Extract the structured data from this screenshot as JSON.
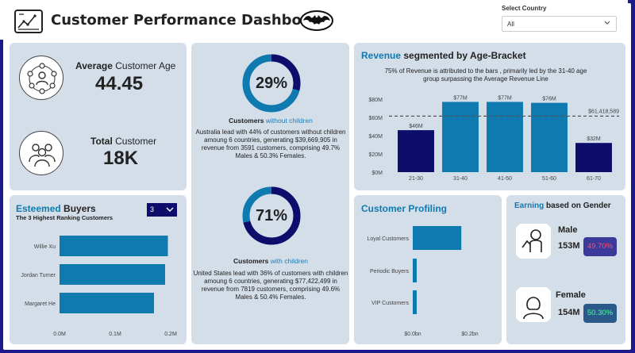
{
  "header": {
    "title": "Customer Performance Dashboard",
    "country_label": "Select Country",
    "country_value": "All"
  },
  "kpis": {
    "age_label_bold": "Average",
    "age_label_rest": " Customer Age",
    "age_value": "44.45",
    "total_label_bold": "Total",
    "total_label_rest": " Customer",
    "total_value": "18K"
  },
  "without_children": {
    "pct": "29%",
    "pct_value": 0.29,
    "title_bold": "Customers",
    "title_rest": " without children",
    "desc": "Australia lead with 44% of customers without children amoung 6 countries, generating $39,669,905 in revenue from 3591 customers, comprising 49.7% Males & 50.3% Females."
  },
  "with_children": {
    "pct": "71%",
    "pct_value": 0.71,
    "title_bold": "Customers",
    "title_rest": " with children",
    "desc": "United States lead with 36% of customers with children amoung 6 countries, generating $77,422,499 in revenue from 7819 customers, comprising 49.6% Males & 50.4% Females."
  },
  "esteemed": {
    "title_hl": "Esteemed",
    "title_rest": " Buyers",
    "subtitle": "The 3 Highest Ranking Customers",
    "dropdown_value": "3"
  },
  "revenue": {
    "title_hl": "Revenue",
    "title_rest": " segmented by Age-Bracket",
    "caption": "75% of Revenue is attributed to the bars , primarily led by the 31-40 age group surpassing the Average Revenue Line"
  },
  "profiling": {
    "title": "Customer Profiling"
  },
  "gender": {
    "title_hl": "Earning",
    "title_rest": " based on Gender",
    "male_label": "Male",
    "male_value": "153M",
    "male_pct": "49.70%",
    "female_label": "Female",
    "female_value": "154M",
    "female_pct": "50.30%"
  },
  "colors": {
    "navy": "#0d0d6b",
    "teal": "#0e7ab0",
    "panel": "#d4dee9",
    "male_pct": "#ff4d6d",
    "female_pct": "#4dff9a"
  },
  "chart_data": [
    {
      "type": "bar",
      "title": "Revenue segmented by Age-Bracket",
      "categories": [
        "21-30",
        "31-40",
        "41-50",
        "51-60",
        "61-70"
      ],
      "values": [
        46,
        77,
        77,
        76,
        32
      ],
      "value_labels": [
        "$46M",
        "$77M",
        "$77M",
        "$76M",
        "$32M"
      ],
      "yticks": [
        "$0M",
        "$20M",
        "$40M",
        "$60M",
        "$80M"
      ],
      "ylim": [
        0,
        80
      ],
      "average_line": 61.418589,
      "average_label": "$61,418,589"
    },
    {
      "type": "bar",
      "orientation": "horizontal",
      "title": "Esteemed Buyers",
      "categories": [
        "Willie Xu",
        "Jordan Turner",
        "Margaret He"
      ],
      "values": [
        0.195,
        0.19,
        0.17
      ],
      "xticks": [
        "0.0M",
        "0.1M",
        "0.2M"
      ],
      "xlim": [
        0,
        0.2
      ]
    },
    {
      "type": "bar",
      "orientation": "horizontal",
      "title": "Customer Profiling",
      "categories": [
        "Loyal Customers",
        "Periodic Buyers",
        "VIP Customers"
      ],
      "values": [
        0.17,
        0.01,
        0.008
      ],
      "xticks": [
        "$0.0bn",
        "$0.2bn"
      ],
      "xlim": [
        0,
        0.2
      ]
    }
  ]
}
